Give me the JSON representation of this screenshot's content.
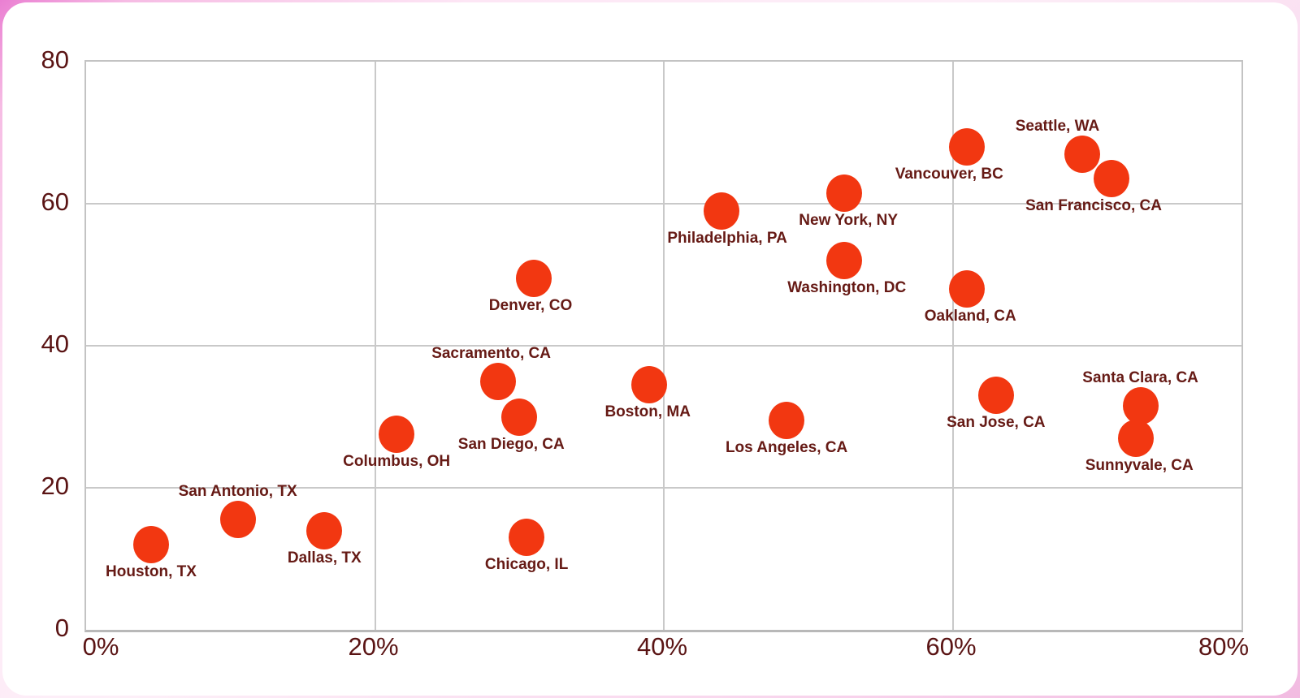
{
  "background": {
    "page_tint": "#ec83d4",
    "card_bg": "#ffffff"
  },
  "chart_data": {
    "type": "scatter",
    "title": "",
    "xlabel": "",
    "ylabel": "",
    "x_axis": {
      "range": [
        0,
        80
      ],
      "ticks": [
        0,
        20,
        40,
        60,
        80
      ],
      "tick_labels": [
        "0%",
        "20%",
        "40%",
        "60%",
        "80%"
      ],
      "unit": "%"
    },
    "y_axis": {
      "range": [
        0,
        80
      ],
      "ticks": [
        0,
        20,
        40,
        60,
        80
      ],
      "tick_labels": [
        "0",
        "20",
        "40",
        "60",
        "80"
      ]
    },
    "grid": true,
    "legend": "none",
    "colors": {
      "point": "#f23711",
      "point_label_text": "#661a15",
      "axis_tick_text": "#5a1414",
      "gridline": "#c9c9c9",
      "plot_border": "#c3c3c3"
    },
    "points": [
      {
        "label": "Houston, TX",
        "x": 4.5,
        "y": 12,
        "label_pos": "below",
        "label_dx": 0
      },
      {
        "label": "San Antonio, TX",
        "x": 10.5,
        "y": 15.5,
        "label_pos": "above",
        "label_dx": 0
      },
      {
        "label": "Dallas, TX",
        "x": 16.5,
        "y": 14,
        "label_pos": "below",
        "label_dx": 0
      },
      {
        "label": "Columbus, OH",
        "x": 21.5,
        "y": 27.5,
        "label_pos": "below",
        "label_dx": 0
      },
      {
        "label": "Sacramento, CA",
        "x": 28.5,
        "y": 35,
        "label_pos": "above",
        "label_dx": -8
      },
      {
        "label": "San Diego, CA",
        "x": 30,
        "y": 30,
        "label_pos": "below",
        "label_dx": -10
      },
      {
        "label": "Chicago, IL",
        "x": 30.5,
        "y": 13,
        "label_pos": "below",
        "label_dx": 0
      },
      {
        "label": "Denver, CO",
        "x": 31,
        "y": 49.5,
        "label_pos": "below",
        "label_dx": -4
      },
      {
        "label": "Boston, MA",
        "x": 39,
        "y": 34.5,
        "label_pos": "below",
        "label_dx": -2
      },
      {
        "label": "Philadelphia, PA",
        "x": 44,
        "y": 59,
        "label_pos": "below",
        "label_dx": 7
      },
      {
        "label": "Los Angeles, CA",
        "x": 48.5,
        "y": 29.5,
        "label_pos": "below",
        "label_dx": 0
      },
      {
        "label": "New York, NY",
        "x": 52.5,
        "y": 61.5,
        "label_pos": "below",
        "label_dx": 5
      },
      {
        "label": "Washington, DC",
        "x": 52.5,
        "y": 52,
        "label_pos": "below",
        "label_dx": 3
      },
      {
        "label": "Vancouver, BC",
        "x": 61,
        "y": 68,
        "label_pos": "below",
        "label_dx": -22
      },
      {
        "label": "Oakland, CA",
        "x": 61,
        "y": 48,
        "label_pos": "below",
        "label_dx": 4
      },
      {
        "label": "San Jose, CA",
        "x": 63,
        "y": 33,
        "label_pos": "below",
        "label_dx": 0
      },
      {
        "label": "Seattle, WA",
        "x": 69,
        "y": 67,
        "label_pos": "above",
        "label_dx": -31
      },
      {
        "label": "San Francisco, CA",
        "x": 71,
        "y": 63.5,
        "label_pos": "below",
        "label_dx": -22
      },
      {
        "label": "Santa Clara, CA",
        "x": 73,
        "y": 31.5,
        "label_pos": "above",
        "label_dx": 0
      },
      {
        "label": "Sunnyvale, CA",
        "x": 72.7,
        "y": 27,
        "label_pos": "below",
        "label_dx": 4
      }
    ]
  }
}
